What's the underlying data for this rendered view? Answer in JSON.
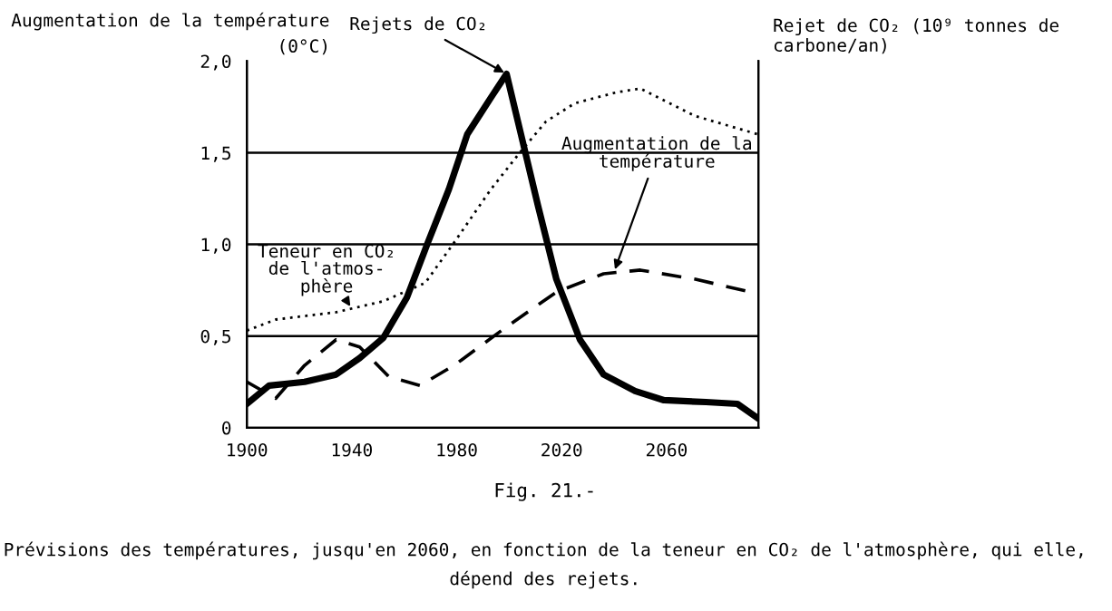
{
  "chart_data": {
    "type": "line",
    "title": "Fig. 21.-",
    "subtitle": "Prévisions des températures, jusqu'en 2060, en fonction de la teneur en CO₂ de l'atmosphère, qui elle, dépend des rejets.",
    "ylabel": "Augmentation de la température",
    "y2label": "Rejet de CO₂ (10⁹ tonnes de carbone/an)",
    "annotations": [
      "(0°C)",
      {
        "text": "Rejets de CO₂",
        "x": 1999,
        "y": 1.93
      },
      {
        "text": "Teneur en CO₂\nde l'atmos-\nphère",
        "x": 1940,
        "y": 0.65
      },
      {
        "text": "Augmentation de la\ntempérature",
        "x": 2040,
        "y": 0.85
      }
    ],
    "series": [
      {
        "color": "#000000",
        "line_style": "solid",
        "x": [
          1900,
          1908.5,
          1922,
          1934,
          1943,
          1952,
          1961,
          1969,
          1977,
          1984,
          1993,
          1999,
          2004.5,
          2011,
          2018,
          2027,
          2036,
          2048,
          2059,
          2075,
          2087,
          2095
        ],
        "values": [
          0.13,
          0.23,
          0.25,
          0.29,
          0.38,
          0.49,
          0.71,
          1.01,
          1.3,
          1.6,
          1.8,
          1.93,
          1.6,
          1.21,
          0.81,
          0.48,
          0.29,
          0.2,
          0.15,
          0.14,
          0.13,
          0.05
        ]
      },
      {
        "color": "#000000",
        "line_style": "dotted",
        "x": [
          1900,
          1911,
          1934,
          1952,
          1968,
          1979,
          1993,
          2004,
          2014,
          2025,
          2041,
          2050,
          2071,
          2095
        ],
        "values": [
          0.53,
          0.59,
          0.63,
          0.69,
          0.79,
          1.01,
          1.3,
          1.5,
          1.67,
          1.77,
          1.83,
          1.85,
          1.7,
          1.6
        ]
      },
      {
        "color": "#000000",
        "line_style": "dashed",
        "x": [
          1900,
          1911,
          1922,
          1934,
          1943,
          1954,
          1966,
          1979,
          1998,
          2018,
          2036,
          2050,
          2071,
          2095
        ],
        "values": [
          0.25,
          0.16,
          0.34,
          0.48,
          0.44,
          0.28,
          0.23,
          0.34,
          0.54,
          0.74,
          0.84,
          0.86,
          0.81,
          0.73
        ]
      }
    ],
    "xlim": [
      1900,
      2095
    ],
    "xticks": [
      1900,
      1940,
      1980,
      2020,
      2060
    ],
    "ylim": [
      0,
      2.0
    ],
    "yticks": [
      0,
      {
        "value": 0.5,
        "label": "0,5"
      },
      {
        "value": 1.0,
        "label": "1,0"
      },
      {
        "value": 1.5,
        "label": "1,5"
      },
      {
        "value": 2.0,
        "label": "2,0"
      }
    ],
    "ref_lines": [
      {
        "axis": "y",
        "value": 0.5,
        "color": "#000000"
      },
      {
        "axis": "y",
        "value": 1.0,
        "color": "#000000"
      },
      {
        "axis": "y",
        "value": 1.5,
        "color": "#000000"
      }
    ],
    "grid": false,
    "legend": false,
    "marker": "none"
  }
}
